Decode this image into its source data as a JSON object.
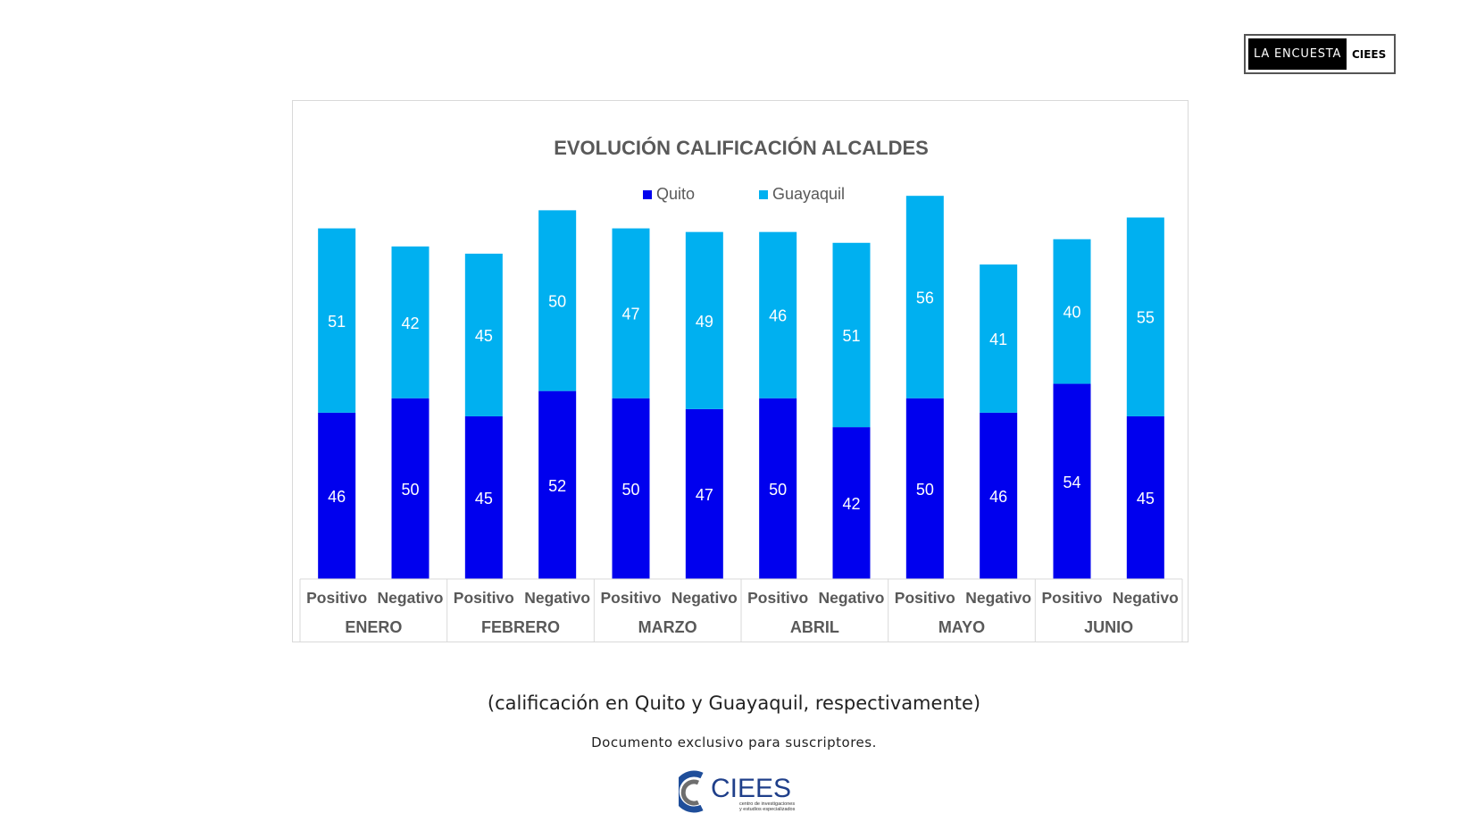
{
  "header": {
    "badge_left": "LA ENCUESTA",
    "badge_right": "CIEES"
  },
  "chart_data": {
    "type": "bar",
    "stacked": true,
    "title": "EVOLUCIÓN CALIFICACIÓN ALCALDES",
    "legend_position": "top",
    "groups": [
      "ENERO",
      "FEBRERO",
      "MARZO",
      "ABRIL",
      "MAYO",
      "JUNIO"
    ],
    "categories": [
      "Positivo",
      "Negativo",
      "Positivo",
      "Negativo",
      "Positivo",
      "Negativo",
      "Positivo",
      "Negativo",
      "Positivo",
      "Negativo",
      "Positivo",
      "Negativo"
    ],
    "series": [
      {
        "name": "Quito",
        "color": "#0000ee",
        "values": [
          46,
          50,
          45,
          52,
          50,
          47,
          50,
          42,
          50,
          46,
          54,
          45
        ]
      },
      {
        "name": "Guayaquil",
        "color": "#00b0f0",
        "values": [
          51,
          42,
          45,
          50,
          47,
          49,
          46,
          51,
          56,
          41,
          40,
          55
        ]
      }
    ],
    "ylim": [
      0,
      110
    ],
    "grid": false
  },
  "caption": "(calificación en Quito y Guayaquil, respectivamente)",
  "note": "Documento exclusivo para suscriptores.",
  "logo": {
    "name": "CIEES",
    "tagline_1": "centro de investigaciones",
    "tagline_2": "y estudios especializados"
  }
}
